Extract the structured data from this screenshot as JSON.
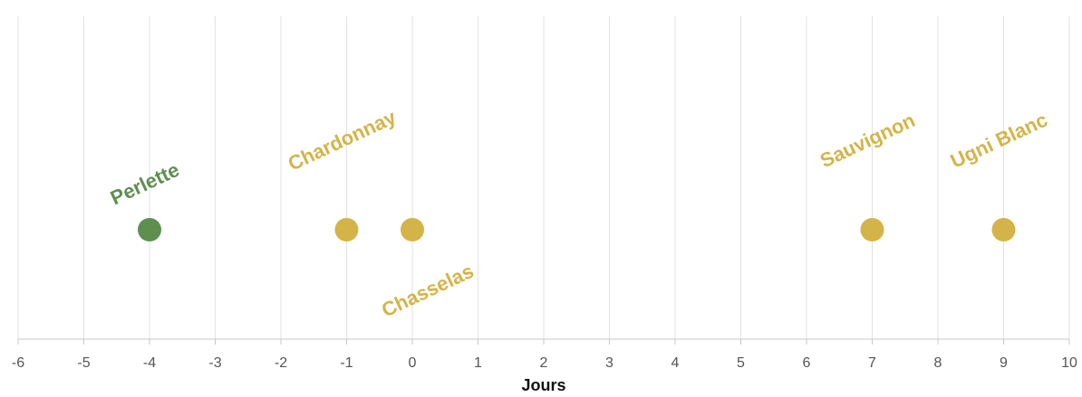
{
  "chart_data": {
    "type": "scatter",
    "xlabel": "Jours",
    "ylabel": "",
    "xlim": [
      -6,
      10
    ],
    "x_ticks": [
      "-6",
      "-5",
      "-4",
      "-3",
      "-2",
      "-1",
      "0",
      "1",
      "2",
      "3",
      "4",
      "5",
      "6",
      "7",
      "8",
      "9",
      "10"
    ],
    "grid": true,
    "points": [
      {
        "label": "Perlette",
        "x": -4,
        "color": "#5e8f4f",
        "label_position": "above"
      },
      {
        "label": "Chardonnay",
        "x": -1,
        "color": "#d4b449",
        "label_position": "above-high"
      },
      {
        "label": "Chasselas",
        "x": 0,
        "color": "#d4b449",
        "label_position": "below"
      },
      {
        "label": "Sauvignon",
        "x": 7,
        "color": "#d4b449",
        "label_position": "above-high"
      },
      {
        "label": "Ugni Blanc",
        "x": 9,
        "color": "#d4b449",
        "label_position": "above-high"
      }
    ]
  }
}
